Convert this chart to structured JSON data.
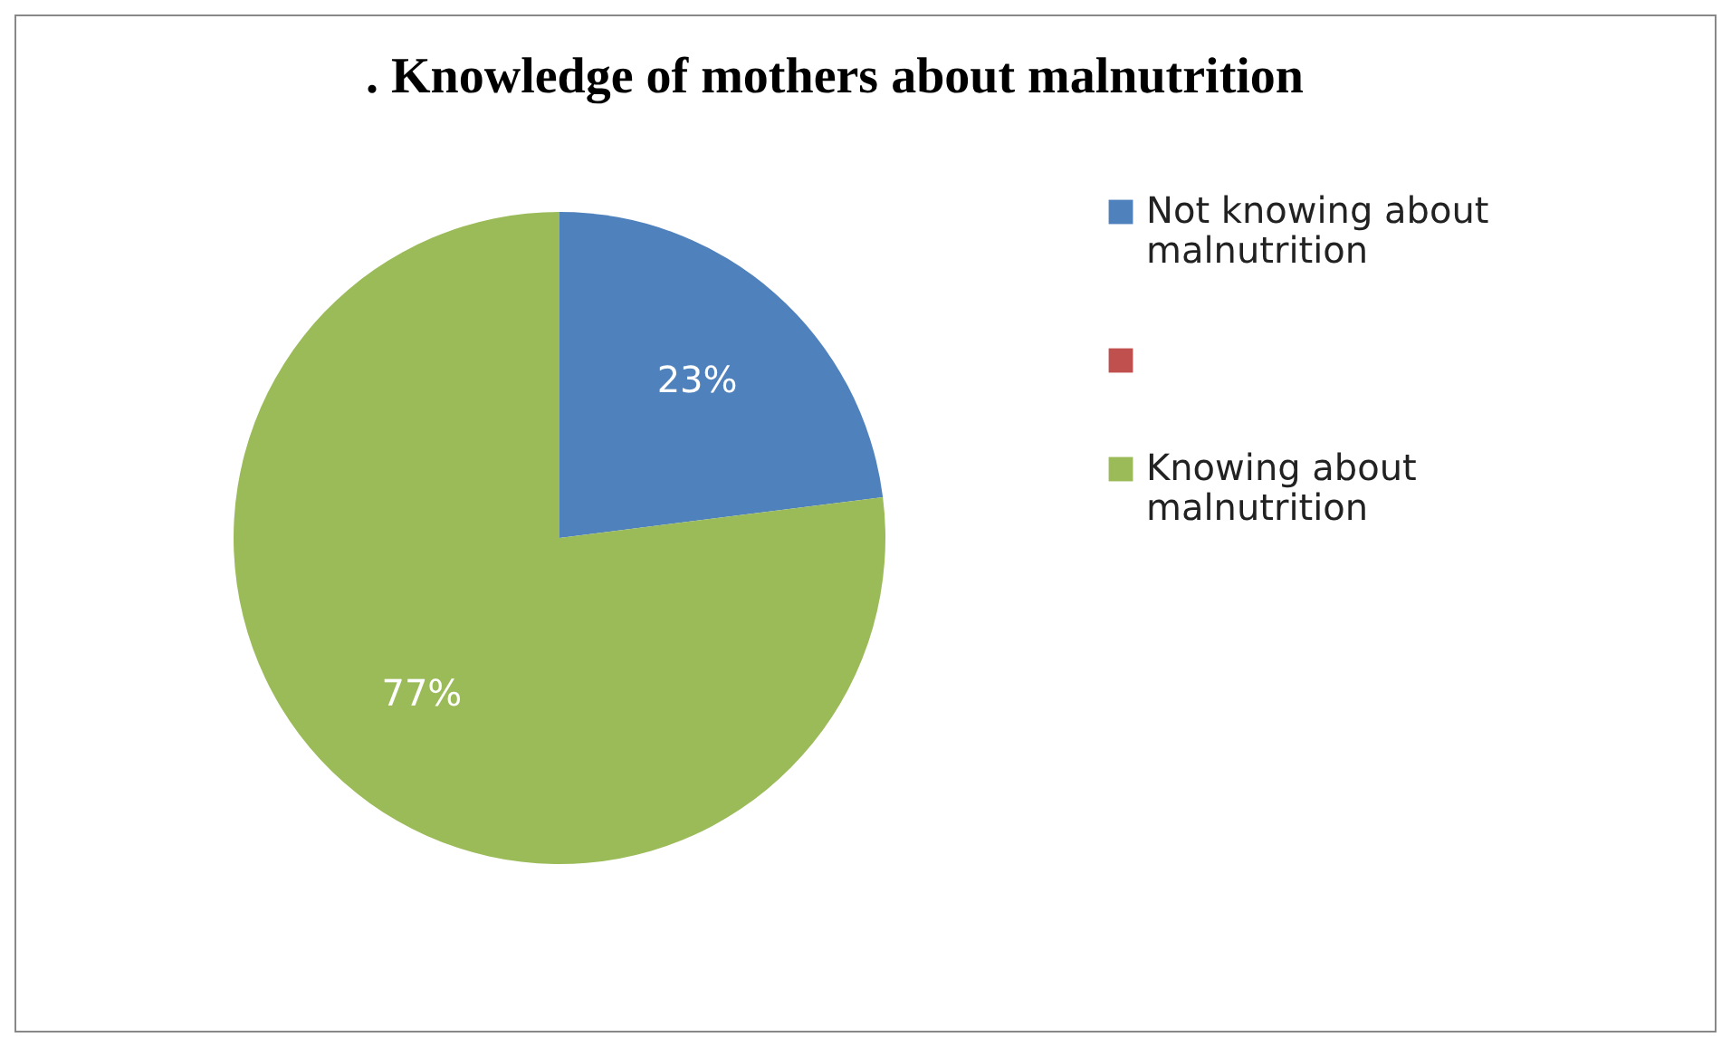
{
  "chart_data": {
    "type": "pie",
    "title": ". Knowledge of mothers about malnutrition",
    "categories": [
      "Not knowing about malnutrition",
      null,
      "Knowing about malnutrition"
    ],
    "values": [
      23,
      0,
      77
    ],
    "colors": [
      "#4f81bd",
      "#c0504d",
      "#9bbb59"
    ],
    "value_labels": [
      "23%",
      null,
      "77%"
    ],
    "legend": "right"
  }
}
